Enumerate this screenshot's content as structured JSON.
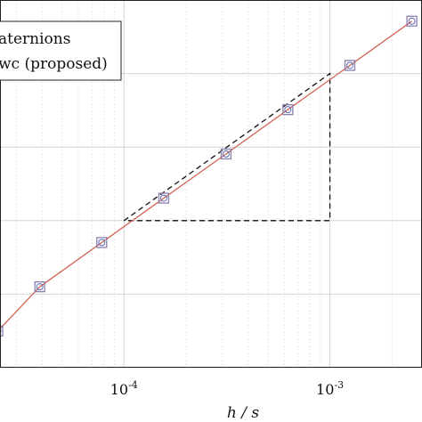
{
  "chart_data": {
    "type": "line",
    "xscale": "log",
    "yscale": "log",
    "grid": true,
    "xlim": [
      2.5e-05,
      0.0028
    ],
    "ylim": [
      1e-08,
      0.001
    ],
    "xlabel": "h / s",
    "xticks": [
      {
        "value": 0.0001,
        "base": "10",
        "exp": "-4"
      },
      {
        "value": 0.001,
        "base": "10",
        "exp": "-3"
      }
    ],
    "legend": {
      "placement": "top-left",
      "entries": [
        "aternions",
        "wc (proposed)"
      ]
    },
    "series": [
      {
        "name": "aternions",
        "color": "#5B6FB8",
        "marker": "circle",
        "x": [
          2.44e-05,
          3.9e-05,
          7.8e-05,
          0.000156,
          0.000313,
          0.000625,
          0.00125,
          0.0025
        ],
        "y": [
          3.15e-08,
          1.26e-07,
          5.04e-07,
          2.02e-06,
          8.06e-06,
          3.23e-05,
          0.000129,
          0.000516
        ]
      },
      {
        "name": "wc (proposed)",
        "color": "#E06A4C",
        "marker": "square",
        "x": [
          2.44e-05,
          3.9e-05,
          7.8e-05,
          0.000156,
          0.000313,
          0.000625,
          0.00125,
          0.0025
        ],
        "y": [
          3.15e-08,
          1.26e-07,
          5.04e-07,
          2.02e-06,
          8.06e-06,
          3.23e-05,
          0.000129,
          0.000516
        ]
      }
    ],
    "slope_triangle": {
      "x": [
        0.0001,
        0.001
      ],
      "y": [
        1e-06,
        0.0001
      ],
      "style": "dashed",
      "color": "#111111"
    },
    "colors": {
      "grid_major": "#D4D4D4",
      "grid_minor": "#E6E6E6",
      "axis": "#222222",
      "marker_edge": "#8C7FB0"
    }
  }
}
